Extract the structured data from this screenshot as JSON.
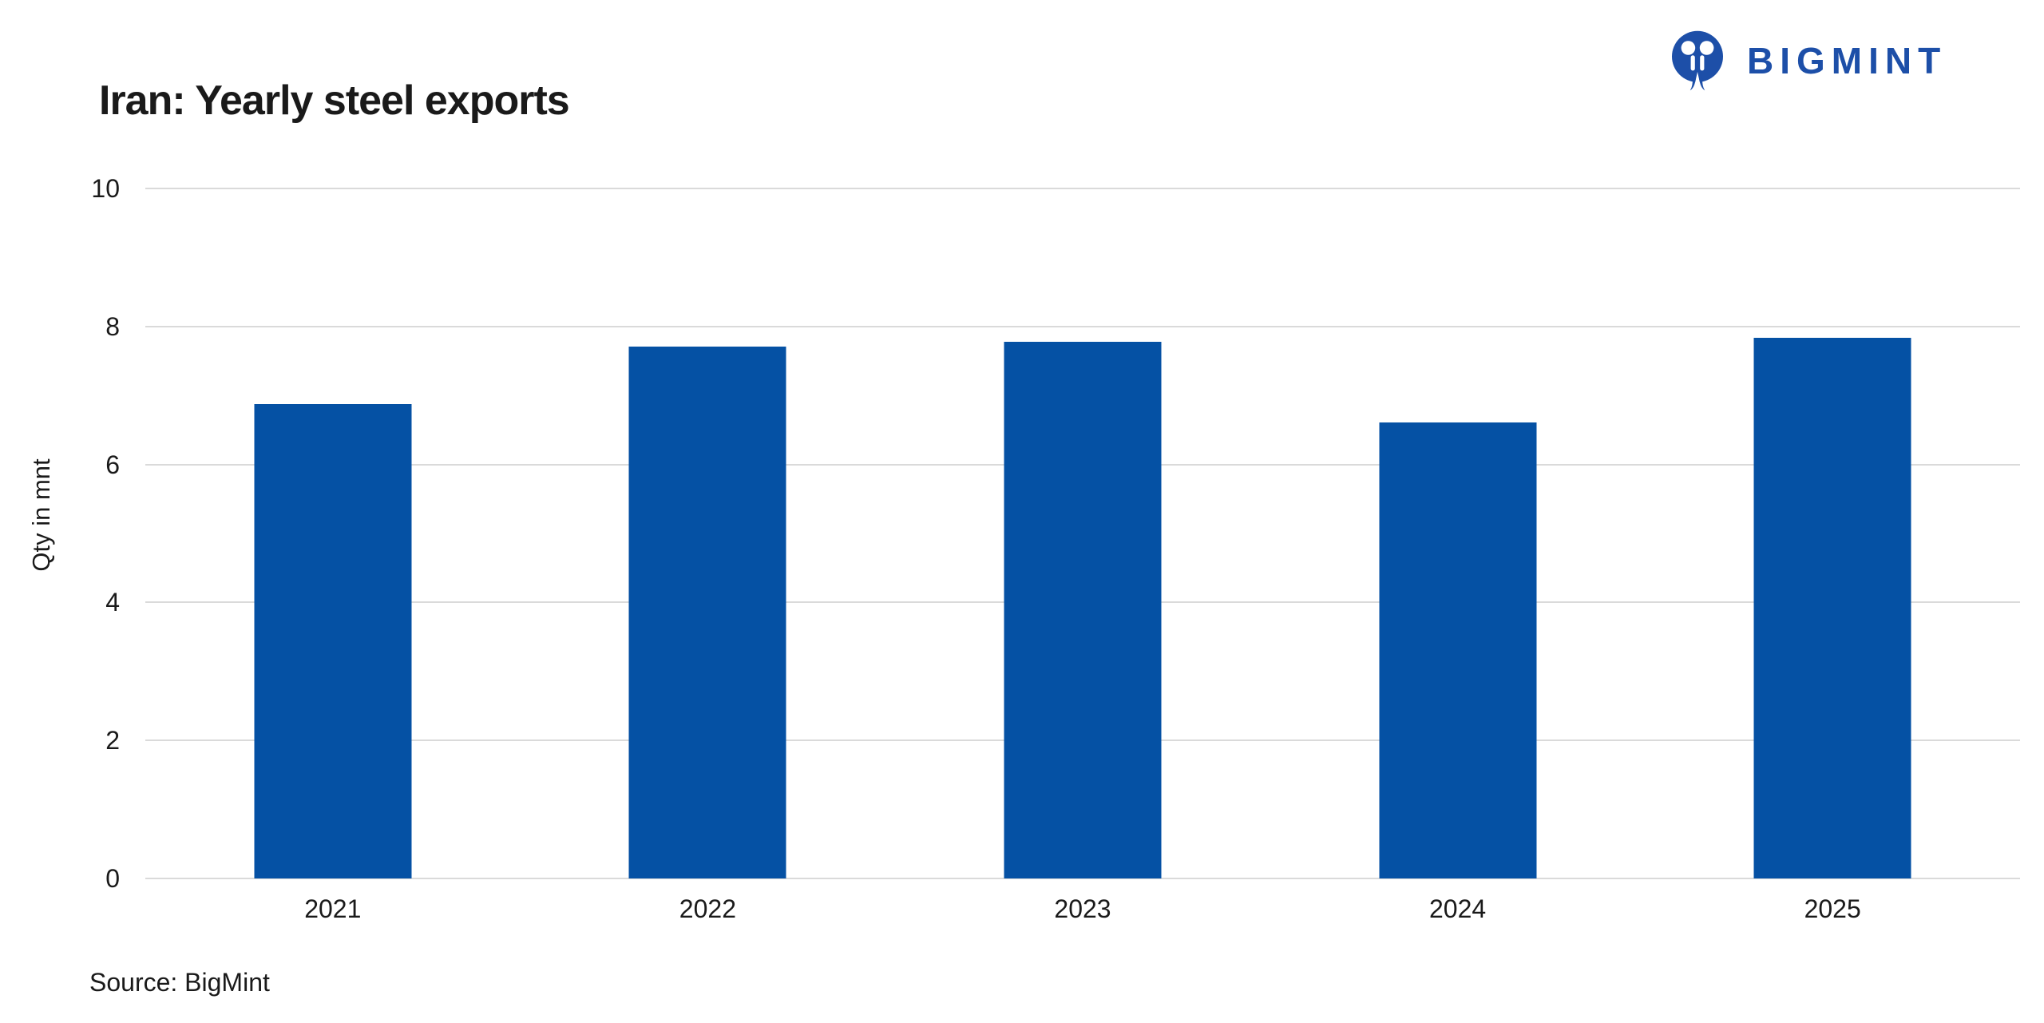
{
  "logo": {
    "text": "BIGMINT",
    "color": "#1d4fa8"
  },
  "footer": {
    "source": "Source: BigMint"
  },
  "colors": {
    "bar": "#0551a4",
    "grid": "#dadada",
    "text": "#1a1a1a",
    "logo": "#1d4fa8"
  },
  "chart_data": {
    "type": "bar",
    "title": "Iran: Yearly steel exports",
    "categories": [
      "2021",
      "2022",
      "2023",
      "2024",
      "2025"
    ],
    "values": [
      6.87,
      7.71,
      7.78,
      6.61,
      7.84
    ],
    "xlabel": "",
    "ylabel": "Qty in mnt",
    "ylim": [
      0,
      10
    ],
    "yticks": [
      0,
      2,
      4,
      6,
      8,
      10
    ],
    "grid": true,
    "legend": false,
    "bar_color": "#0551a4",
    "source": "Source: BigMint"
  }
}
